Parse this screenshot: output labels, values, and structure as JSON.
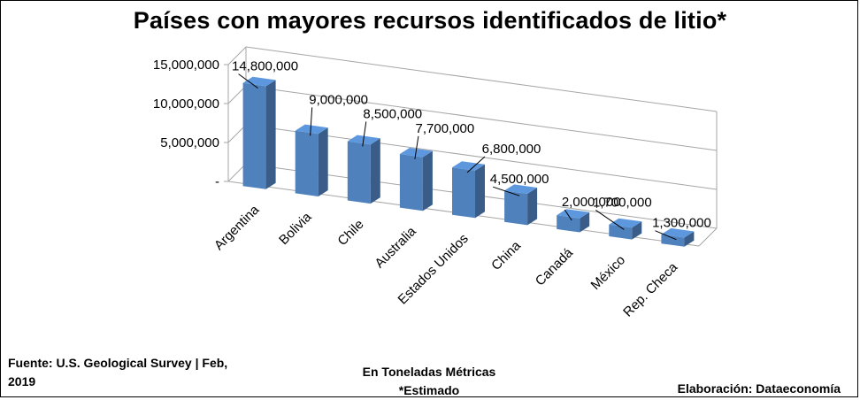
{
  "title": "Países con mayores recursos identificados de litio*",
  "footer": {
    "source": "Fuente: U.S. Geological Survey | Feb, 2019",
    "units": "En Toneladas Métricas",
    "note": "*Estimado",
    "credit": "Elaboración: Dataeconomía"
  },
  "chart_data": {
    "type": "bar",
    "style": "3d-column",
    "title": "Países con mayores recursos identificados de litio*",
    "categories": [
      "Argentina",
      "Bolivia",
      "Chile",
      "Australia",
      "Estados Unidos",
      "China",
      "Canadá",
      "México",
      "Rep. Checa"
    ],
    "values": [
      14800000,
      9000000,
      8500000,
      7700000,
      6800000,
      4500000,
      2000000,
      1700000,
      1300000
    ],
    "data_labels": [
      "14,800,000",
      "9,000,000",
      "8,500,000",
      "7,700,000",
      "6,800,000",
      "4,500,000",
      "2,000,000",
      "1,700,000",
      "1,300,000"
    ],
    "y_ticks": [
      "-",
      "5,000,000",
      "10,000,000",
      "15,000,000"
    ],
    "ylim": [
      0,
      15000000
    ],
    "grid": true,
    "legend": "none",
    "bar_color": "#4f81bd"
  }
}
